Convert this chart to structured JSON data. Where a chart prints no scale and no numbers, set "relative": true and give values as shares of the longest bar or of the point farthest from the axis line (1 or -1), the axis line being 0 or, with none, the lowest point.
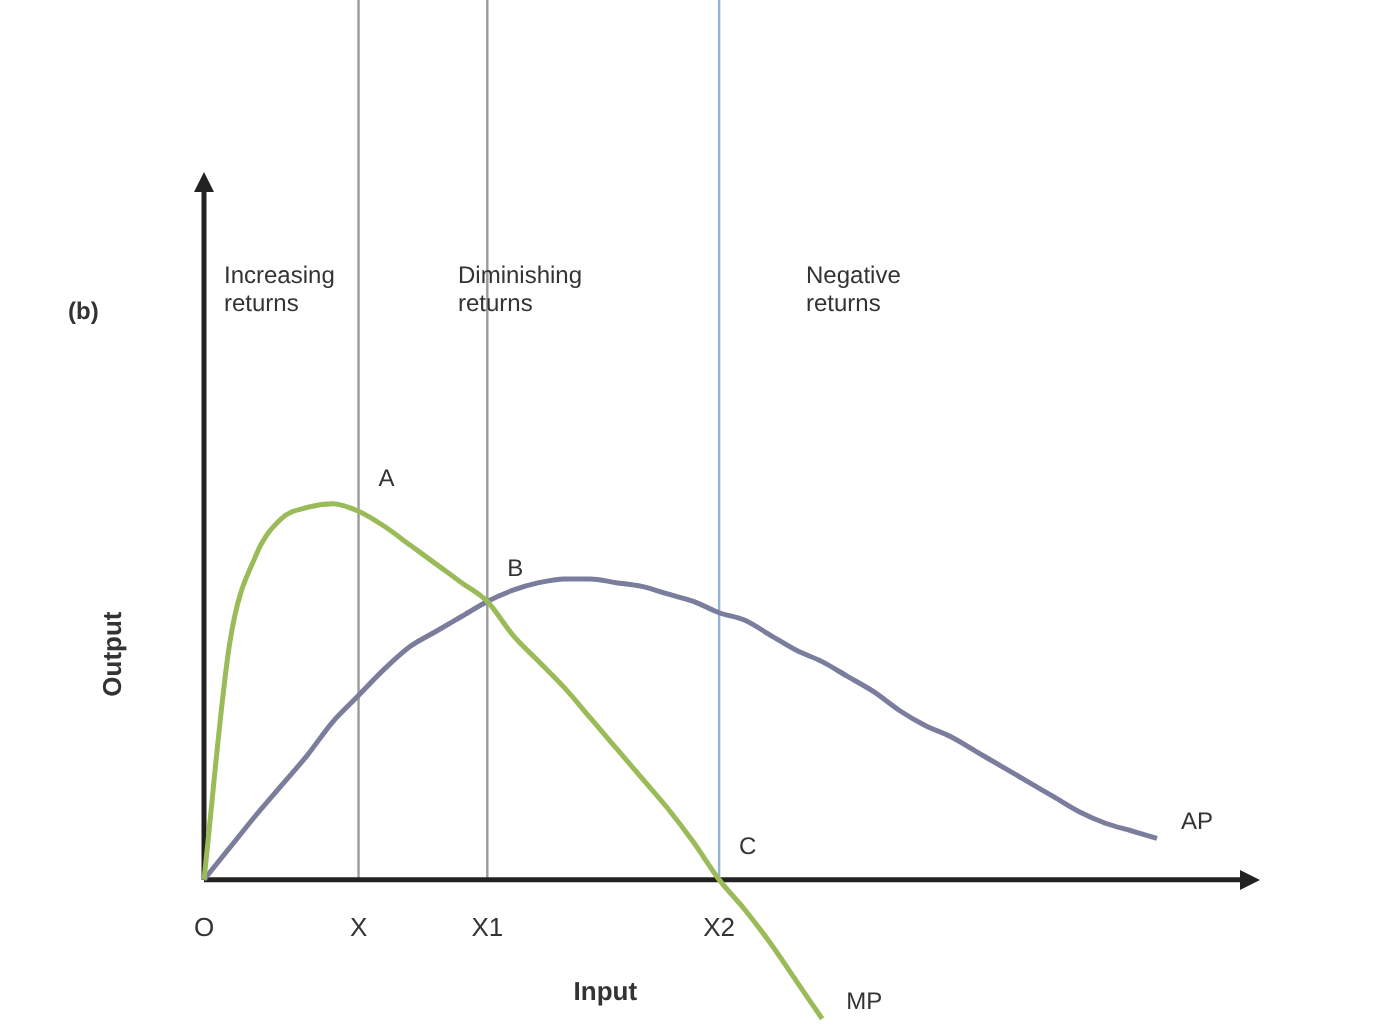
{
  "chart_data": {
    "type": "line",
    "relative": true,
    "xlabel": "Input",
    "ylabel": "Output",
    "categories": [
      "O",
      null,
      null,
      null,
      null,
      null,
      "X",
      null,
      null,
      null,
      null,
      "X1",
      null,
      null,
      null,
      null,
      null,
      null,
      null,
      null,
      "X2",
      null,
      null,
      null,
      null,
      null,
      null,
      null,
      null,
      null,
      null,
      null,
      null,
      null,
      null,
      null,
      null,
      null,
      null,
      null,
      null,
      null
    ],
    "series": [
      {
        "name": "MP",
        "color": "#9bbb59",
        "values": [
          0,
          0.63,
          0.86,
          0.96,
          0.99,
          1,
          0.98,
          0.94,
          0.89,
          0.84,
          0.79,
          0.74,
          0.65,
          0.58,
          0.51,
          0.43,
          0.35,
          0.27,
          0.19,
          0.1,
          0,
          -0.08,
          -0.17,
          -0.27,
          -0.37,
          null,
          null,
          null,
          null,
          null,
          null,
          null,
          null,
          null,
          null,
          null,
          null,
          null,
          null,
          null,
          null,
          null
        ]
      },
      {
        "name": "AP",
        "color": "#7a7d9c",
        "values": [
          0,
          0.085,
          0.17,
          0.25,
          0.33,
          0.42,
          0.49,
          0.56,
          0.62,
          0.66,
          0.7,
          0.74,
          0.77,
          0.79,
          0.8,
          0.8,
          0.79,
          0.78,
          0.76,
          0.74,
          0.71,
          0.69,
          0.65,
          0.61,
          0.58,
          0.54,
          0.5,
          0.45,
          0.41,
          0.38,
          0.34,
          0.3,
          0.26,
          0.22,
          0.18,
          0.15,
          0.13,
          0.11,
          null,
          null,
          null,
          null
        ]
      }
    ],
    "ref_lines": [
      {
        "axis": "x",
        "value": "X",
        "color": "#9a9a9a"
      },
      {
        "axis": "x",
        "value": "X1",
        "color": "#9a9a9a"
      },
      {
        "axis": "x",
        "value": "X2",
        "color": "#95b3d7"
      }
    ],
    "annotations": [
      "(b)",
      "Increasing returns",
      "Diminishing returns",
      "Negative returns",
      {
        "text": "A",
        "x": "X",
        "y": 0.98
      },
      {
        "text": "B",
        "x": "X1",
        "y": 0.74
      },
      {
        "text": "C",
        "x": "X2",
        "y": 0
      }
    ]
  }
}
